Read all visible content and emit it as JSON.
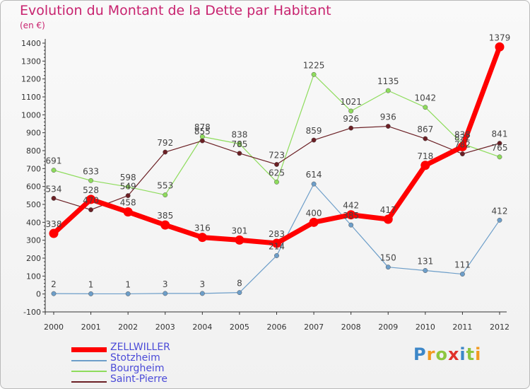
{
  "title": "Evolution du Montant de la Dette par Habitant",
  "unit": "(en €)",
  "logo": "Proxiti",
  "chart_data": {
    "type": "line",
    "x": [
      "2000",
      "2001",
      "2002",
      "2003",
      "2004",
      "2005",
      "2006",
      "2007",
      "2008",
      "2009",
      "2010",
      "2011",
      "2012"
    ],
    "ylim": [
      -100,
      1400
    ],
    "yticks": [
      -100,
      0,
      100,
      200,
      300,
      400,
      500,
      600,
      700,
      800,
      900,
      1000,
      1100,
      1200,
      1300,
      1400
    ],
    "grid": false,
    "legend_position": "bottom-left",
    "series": [
      {
        "name": "ZELLWILLER",
        "color": "#ff0000",
        "values": [
          338,
          528,
          458,
          385,
          316,
          301,
          283,
          400,
          442,
          417,
          718,
          822,
          1379
        ]
      },
      {
        "name": "Stotzheim",
        "color": "#6d9ec9",
        "values": [
          2,
          1,
          1,
          3,
          3,
          8,
          214,
          614,
          385,
          150,
          131,
          111,
          412
        ]
      },
      {
        "name": "Bourgheim",
        "color": "#8edc5c",
        "values": [
          691,
          633,
          598,
          553,
          878,
          838,
          625,
          1225,
          1021,
          1135,
          1042,
          838,
          765
        ]
      },
      {
        "name": "Saint-Pierre",
        "color": "#6b1f24",
        "values": [
          534,
          470,
          549,
          792,
          855,
          785,
          723,
          859,
          926,
          936,
          867,
          782,
          841
        ]
      }
    ]
  }
}
